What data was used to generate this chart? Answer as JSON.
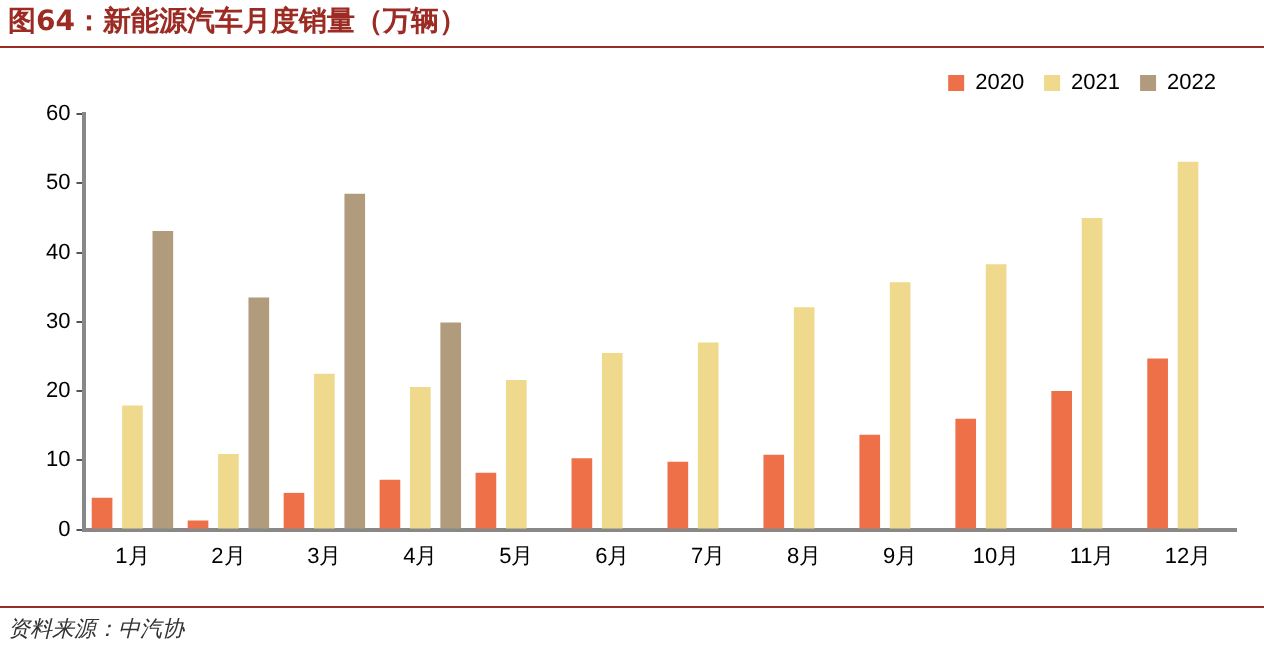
{
  "chart_data": {
    "type": "bar",
    "title": "图64：新能源汽车月度销量（万辆）",
    "categories": [
      "1月",
      "2月",
      "3月",
      "4月",
      "5月",
      "6月",
      "7月",
      "8月",
      "9月",
      "10月",
      "11月",
      "12月"
    ],
    "series": [
      {
        "name": "2020",
        "color": "#ed7049",
        "values": [
          4.6,
          1.3,
          5.3,
          7.2,
          8.2,
          10.3,
          9.8,
          10.8,
          13.7,
          16.0,
          20.0,
          24.7
        ]
      },
      {
        "name": "2021",
        "color": "#eed98c",
        "values": [
          17.9,
          10.9,
          22.5,
          20.6,
          21.6,
          25.5,
          27.0,
          32.1,
          35.7,
          38.3,
          45.0,
          53.1
        ]
      },
      {
        "name": "2022",
        "color": "#b09b7c",
        "values": [
          43.1,
          33.5,
          48.5,
          29.9,
          null,
          null,
          null,
          null,
          null,
          null,
          null,
          null
        ]
      }
    ],
    "ylim": [
      0,
      60
    ],
    "yticks": [
      0,
      10,
      20,
      30,
      40,
      50,
      60
    ],
    "grid": false,
    "legend": "top right",
    "annotations": [
      "资料来源：中汽协"
    ]
  }
}
